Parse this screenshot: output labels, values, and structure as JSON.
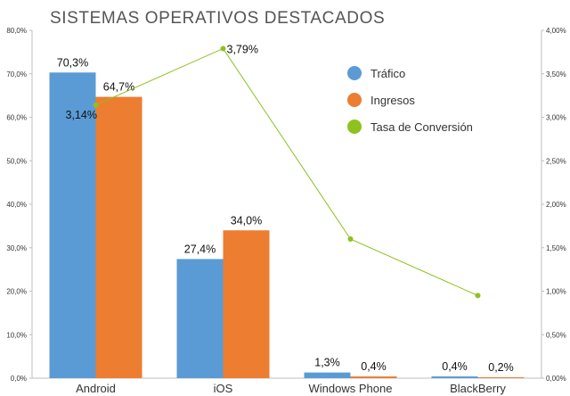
{
  "chart_data": {
    "type": "bar",
    "title": "SISTEMAS OPERATIVOS DESTACADOS",
    "categories": [
      "Android",
      "iOS",
      "Windows Phone",
      "BlackBerry"
    ],
    "series": [
      {
        "name": "Tráfico",
        "axis": "left",
        "kind": "bar",
        "color": "#5b9bd5",
        "values": [
          70.3,
          27.4,
          1.3,
          0.4
        ],
        "labels": [
          "70,3%",
          "27,4%",
          "1,3%",
          "0,4%"
        ]
      },
      {
        "name": "Ingresos",
        "axis": "left",
        "kind": "bar",
        "color": "#ed7d31",
        "values": [
          64.7,
          34.0,
          0.4,
          0.2
        ],
        "labels": [
          "64,7%",
          "34,0%",
          "0,4%",
          "0,2%"
        ]
      },
      {
        "name": "Tasa de Conversión",
        "axis": "right",
        "kind": "line",
        "color": "#8dc21f",
        "values": [
          3.14,
          3.79,
          1.6,
          0.95
        ],
        "labels": [
          "3,14%",
          "3,79%",
          "",
          ""
        ]
      }
    ],
    "y_left": {
      "min": 0,
      "max": 80,
      "step": 10,
      "ticks": [
        "0,0%",
        "10,0%",
        "20,0%",
        "30,0%",
        "40,0%",
        "50,0%",
        "60,0%",
        "70,0%",
        "80,0%"
      ]
    },
    "y_right": {
      "min": 0,
      "max": 4,
      "step": 0.5,
      "ticks": [
        "0,00%",
        "0,50%",
        "1,00%",
        "1,50%",
        "2,00%",
        "2,50%",
        "3,00%",
        "3,50%",
        "4,00%"
      ]
    },
    "grid": false,
    "legend_position": "top-right"
  }
}
